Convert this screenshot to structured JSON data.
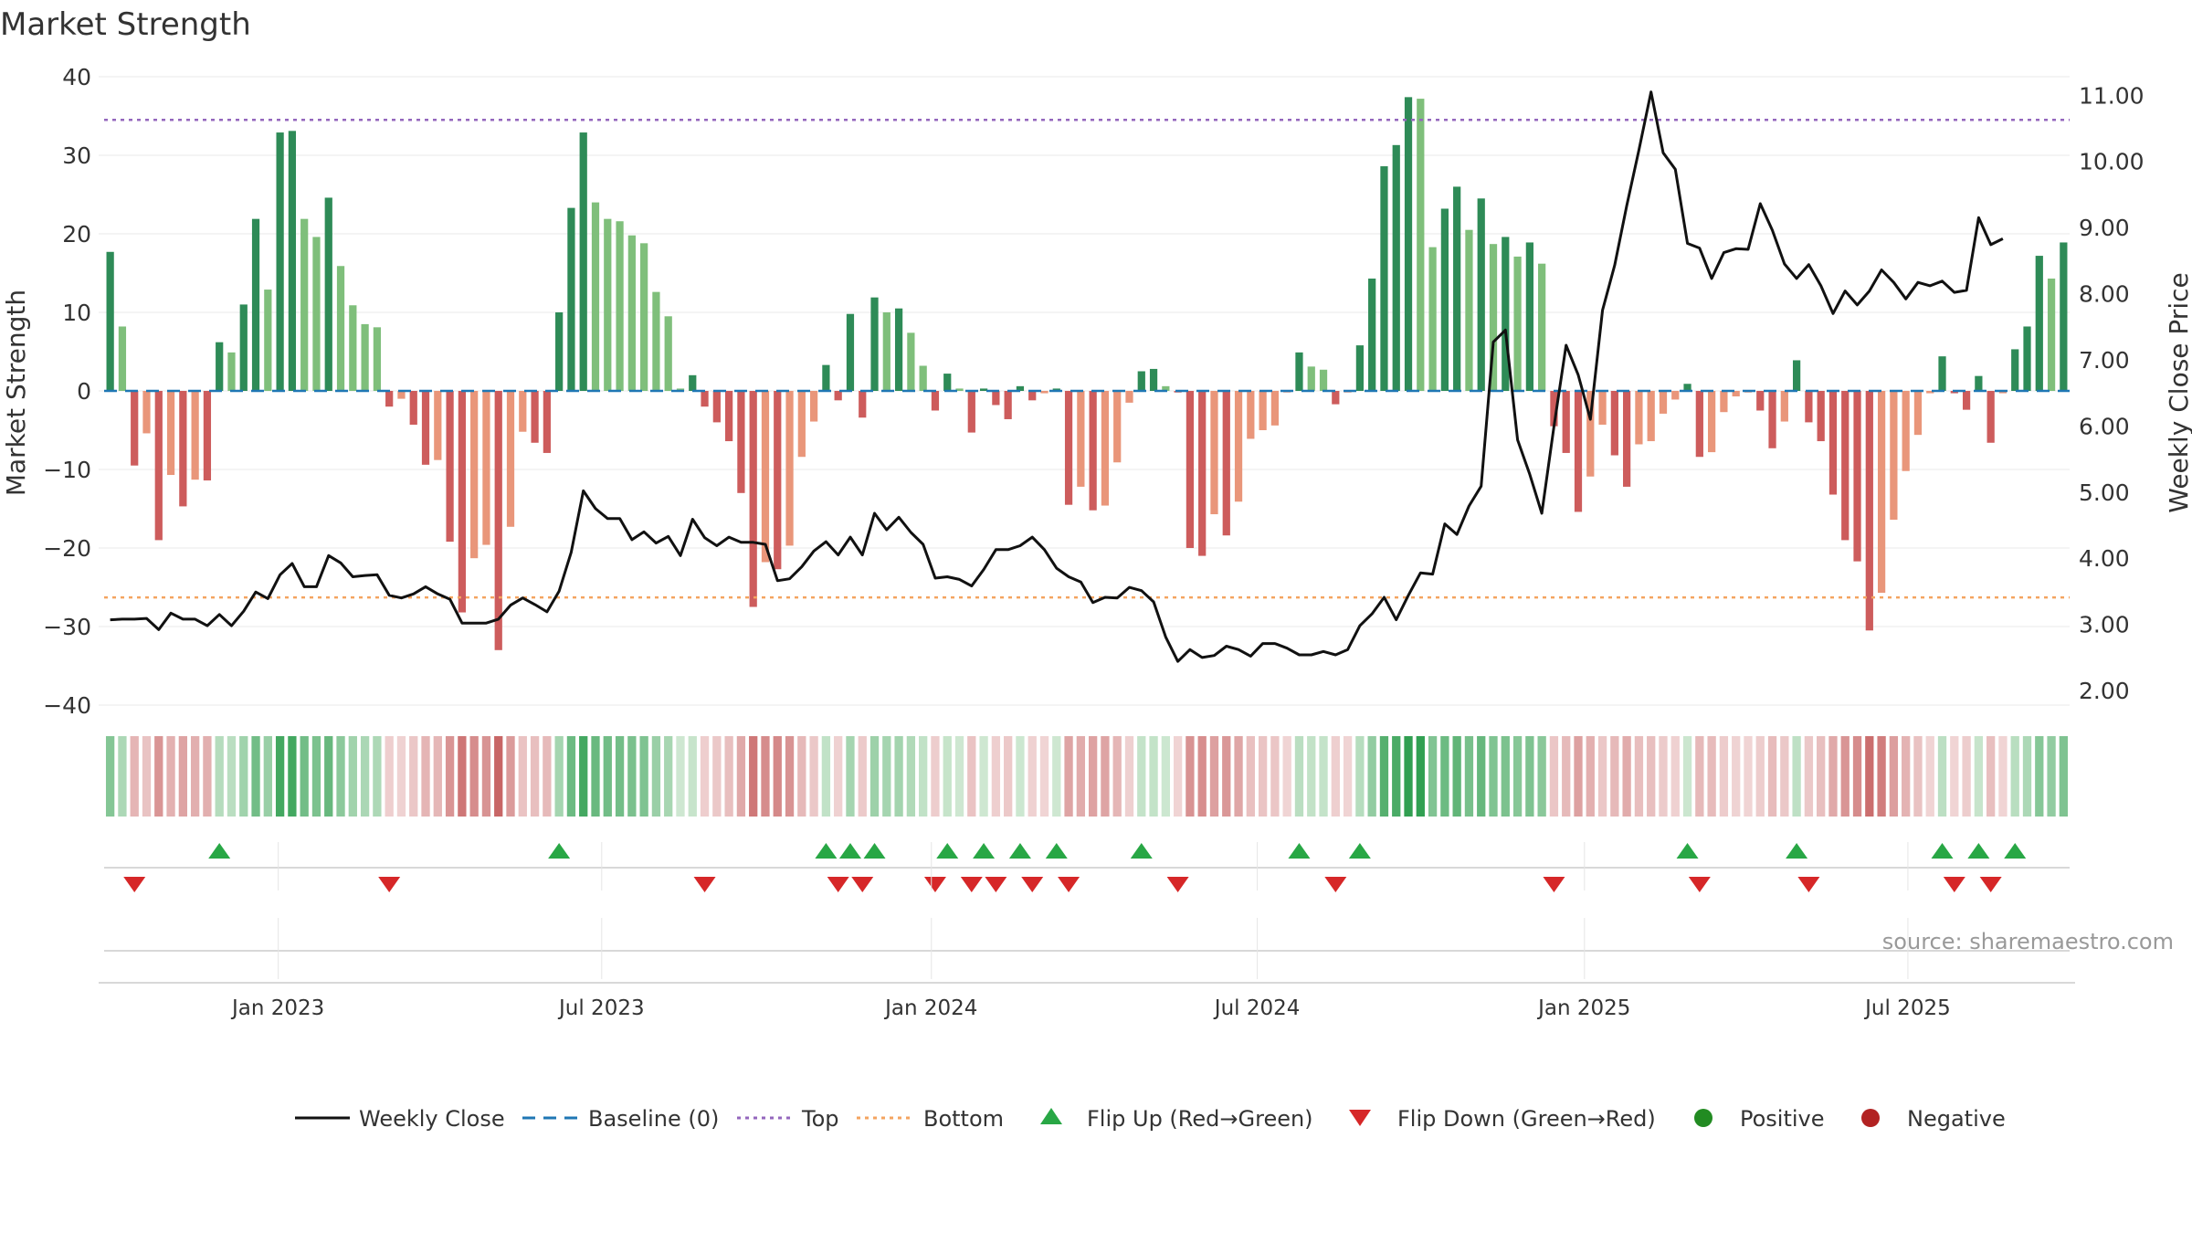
{
  "chart_data": {
    "type": "bar",
    "title": "Market Strength",
    "ylabel_left": "Market Strength",
    "ylabel_right": "Weekly Close Price",
    "ylim_left": [
      -40,
      40
    ],
    "yticks_left": [
      40,
      30,
      20,
      10,
      0,
      -10,
      -20,
      -30,
      -40
    ],
    "ytick_labels_left": [
      "40",
      "30",
      "20",
      "10",
      "0",
      "−10",
      "−20",
      "−30",
      "−40"
    ],
    "ylim_right": [
      1.78,
      11.28
    ],
    "yticks_right": [
      11,
      10,
      9,
      8,
      7,
      6,
      5,
      4,
      3,
      2
    ],
    "ytick_labels_right": [
      "11.00",
      "10.00",
      "9.00",
      "8.00",
      "7.00",
      "6.00",
      "5.00",
      "4.00",
      "3.00",
      "2.00"
    ],
    "x_start_week": 0,
    "x_end_week": 158,
    "x_ticks": [
      {
        "label": "Jan 2023",
        "week": 14
      },
      {
        "label": "Jul 2023",
        "week": 40
      },
      {
        "label": "Jan 2024",
        "week": 66.5
      },
      {
        "label": "Jul 2024",
        "week": 92.7
      },
      {
        "label": "Jan 2025",
        "week": 119
      },
      {
        "label": "Jul 2025",
        "week": 145
      }
    ],
    "top_level": 34.5,
    "bottom_level": -26.3,
    "strength": [
      17.7,
      8.2,
      -9.5,
      -5.4,
      -19,
      -10.7,
      -14.7,
      -11.3,
      -11.4,
      6.2,
      4.9,
      11,
      21.9,
      12.9,
      32.9,
      33.1,
      21.9,
      19.6,
      24.6,
      15.9,
      10.9,
      8.5,
      8.1,
      -2,
      -1,
      -4.3,
      -9.4,
      -8.8,
      -19.2,
      -28.2,
      -21.3,
      -19.6,
      -33,
      -17.3,
      -5.2,
      -6.6,
      -7.9,
      10,
      23.3,
      32.9,
      24,
      21.9,
      21.6,
      19.8,
      18.8,
      12.6,
      9.5,
      0.3,
      2,
      -2,
      -4,
      -6.4,
      -13,
      -27.5,
      -21.8,
      -22.7,
      -19.7,
      -8.4,
      -3.9,
      3.3,
      -1.2,
      9.8,
      -3.4,
      11.9,
      10,
      10.5,
      7.4,
      3.2,
      -2.5,
      2.2,
      0.3,
      -5.3,
      0.3,
      -1.8,
      -3.6,
      0.6,
      -1.2,
      -0.3,
      0.3,
      -14.5,
      -12.2,
      -15.2,
      -14.6,
      -9.1,
      -1.5,
      2.5,
      2.8,
      0.6,
      -0.2,
      -20,
      -21,
      -15.7,
      -18.4,
      -14.1,
      -6.1,
      -5,
      -4.4,
      -0.2,
      4.9,
      3.1,
      2.7,
      -1.7,
      -0.2,
      5.8,
      14.3,
      28.6,
      31.3,
      37.4,
      37.2,
      18.3,
      23.2,
      26,
      20.5,
      24.5,
      18.7,
      19.6,
      17.1,
      18.9,
      16.2,
      -4.5,
      -7.9,
      -15.4,
      -10.9,
      -4.3,
      -8.2,
      -12.2,
      -6.8,
      -6.4,
      -2.9,
      -1.1,
      0.9,
      -8.4,
      -7.8,
      -2.7,
      -0.7,
      -0.2,
      -2.5,
      -7.3,
      -3.9,
      3.9,
      -4,
      -6.4,
      -13.2,
      -19,
      -21.7,
      -30.5,
      -25.7,
      -16.4,
      -10.2,
      -5.6,
      -0.3,
      4.4,
      -0.3,
      -2.4,
      1.9,
      -6.6,
      -0.3,
      5.3,
      8.2,
      17.2,
      14.3,
      18.9
    ],
    "weekly_close": [
      3.07,
      3.08,
      3.08,
      3.09,
      2.92,
      3.17,
      3.08,
      3.08,
      2.98,
      3.15,
      2.98,
      3.2,
      3.49,
      3.39,
      3.75,
      3.92,
      3.57,
      3.57,
      4.04,
      3.93,
      3.72,
      3.74,
      3.75,
      3.44,
      3.4,
      3.46,
      3.57,
      3.46,
      3.38,
      3.02,
      3.02,
      3.02,
      3.08,
      3.29,
      3.4,
      3.3,
      3.19,
      3.5,
      4.09,
      5.02,
      4.75,
      4.6,
      4.6,
      4.28,
      4.4,
      4.23,
      4.33,
      4.04,
      4.59,
      4.31,
      4.19,
      4.32,
      4.24,
      4.24,
      4.21,
      3.66,
      3.69,
      3.87,
      4.11,
      4.25,
      4.05,
      4.32,
      4.05,
      4.68,
      4.43,
      4.62,
      4.39,
      4.21,
      3.7,
      3.72,
      3.68,
      3.58,
      3.83,
      4.13,
      4.13,
      4.19,
      4.32,
      4.13,
      3.85,
      3.72,
      3.64,
      3.33,
      3.41,
      3.4,
      3.56,
      3.51,
      3.34,
      2.81,
      2.44,
      2.62,
      2.5,
      2.53,
      2.67,
      2.62,
      2.52,
      2.71,
      2.71,
      2.64,
      2.54,
      2.54,
      2.59,
      2.54,
      2.62,
      2.98,
      3.16,
      3.41,
      3.07,
      3.44,
      3.78,
      3.76,
      4.52,
      4.36,
      4.79,
      5.09,
      7.27,
      7.45,
      5.79,
      5.27,
      4.68,
      5.99,
      7.22,
      6.77,
      6.1,
      7.75,
      8.43,
      9.33,
      10.17,
      11.05,
      10.13,
      9.88,
      8.76,
      8.69,
      8.23,
      8.62,
      8.68,
      8.67,
      9.36,
      8.96,
      8.45,
      8.23,
      8.44,
      8.12,
      7.7,
      8.04,
      7.83,
      8.04,
      8.36,
      8.17,
      7.92,
      8.17,
      8.12,
      8.19,
      8.02,
      8.05,
      9.15,
      8.74,
      8.83
    ]
  },
  "legend": {
    "weekly_close": "Weekly Close",
    "baseline": "Baseline (0)",
    "top": "Top",
    "bottom": "Bottom",
    "flip_up": "Flip Up (Red→Green)",
    "flip_down": "Flip Down (Green→Red)",
    "positive": "Positive",
    "negative": "Negative"
  },
  "source": "source: sharemaestro.com",
  "colors": {
    "pos_strong": "#2e8b57",
    "pos_weak": "#7fbf7b",
    "neg_strong": "#cd5c5c",
    "neg_weak": "#e9967a",
    "line": "#111111",
    "top": "#9467bd",
    "bottom": "#f4a460",
    "baseline": "#1f77b4",
    "flip_up": "#28a745",
    "flip_down": "#d62728",
    "positive_dot": "#228b22",
    "negative_dot": "#b22222"
  }
}
